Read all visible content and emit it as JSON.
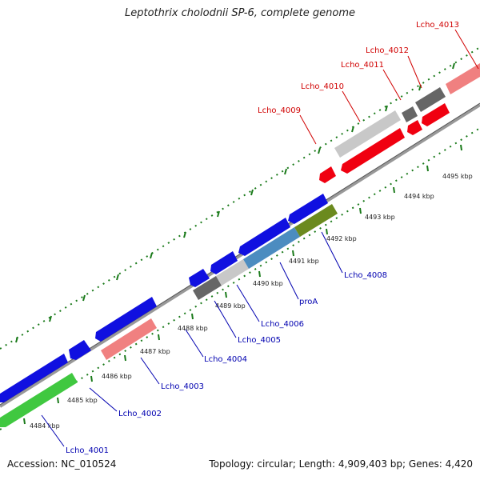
{
  "title": "Leptothrix cholodnii SP-6, complete genome",
  "footer": {
    "accession": "Accession: NC_010524",
    "summary": "Topology: circular; Length: 4,909,403 bp; Genes: 4,420"
  },
  "colors": {
    "blue": "#1010e0",
    "red": "#f00010",
    "gray_dark": "#666666",
    "gray_light": "#c8c8c8",
    "pink": "#f08080",
    "green": "#40c840",
    "olive": "#6b8a1e",
    "steel_blue": "#4c8cc0",
    "tick_green": "#1a7a1a",
    "label_blue": "#0000b0",
    "label_red": "#d00000"
  },
  "scale_labels": [
    "4484 kbp",
    "4485 kbp",
    "4486 kbp",
    "4487 kbp",
    "4488 kbp",
    "4489 kbp",
    "4490 kbp",
    "4491 kbp",
    "4492 kbp",
    "4493 kbp",
    "4494 kbp",
    "4495 kbp"
  ],
  "gene_labels": {
    "lcho_4001": "Lcho_4001",
    "lcho_4002": "Lcho_4002",
    "lcho_4003": "Lcho_4003",
    "lcho_4004": "Lcho_4004",
    "lcho_4005": "Lcho_4005",
    "lcho_4006": "Lcho_4006",
    "proA": "proA",
    "lcho_4008": "Lcho_4008",
    "lcho_4009": "Lcho_4009",
    "lcho_4010": "Lcho_4010",
    "lcho_4011": "Lcho_4011",
    "lcho_4012": "Lcho_4012",
    "lcho_4013": "Lcho_4013"
  }
}
